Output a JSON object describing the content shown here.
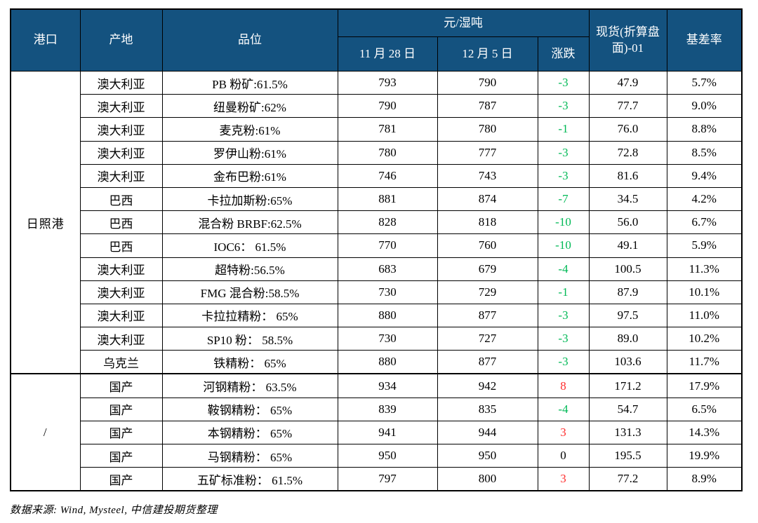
{
  "page": {
    "footer": "数据来源: Wind, Mysteel, 中信建投期货整理"
  },
  "colors": {
    "header_bg": "#14527F",
    "up_red": "#FF2D2D",
    "down_green": "#00B956",
    "border": "#000000"
  },
  "table": {
    "header": {
      "port": "港口",
      "origin": "产地",
      "grade": "品位",
      "unit_group": "元/湿吨",
      "date_prev": "11 月 28 日",
      "date_curr": "12 月 5 日",
      "change": "涨跌",
      "spot": "现货(折算盘面)-01",
      "basis_rate": "基差率"
    },
    "column_names": [
      "origin",
      "grade",
      "price_nov28",
      "price_dec5",
      "change",
      "spot_basis",
      "basis_rate"
    ],
    "groups": [
      {
        "port": "日照港",
        "rows": [
          [
            "澳大利亚",
            "PB 粉矿:61.5%",
            "793",
            "790",
            "-3",
            "47.9",
            "5.7%"
          ],
          [
            "澳大利亚",
            "纽曼粉矿:62%",
            "790",
            "787",
            "-3",
            "77.7",
            "9.0%"
          ],
          [
            "澳大利亚",
            "麦克粉:61%",
            "781",
            "780",
            "-1",
            "76.0",
            "8.8%"
          ],
          [
            "澳大利亚",
            "罗伊山粉:61%",
            "780",
            "777",
            "-3",
            "72.8",
            "8.5%"
          ],
          [
            "澳大利亚",
            "金布巴粉:61%",
            "746",
            "743",
            "-3",
            "81.6",
            "9.4%"
          ],
          [
            "巴西",
            "卡拉加斯粉:65%",
            "881",
            "874",
            "-7",
            "34.5",
            "4.2%"
          ],
          [
            "巴西",
            "混合粉 BRBF:62.5%",
            "828",
            "818",
            "-10",
            "56.0",
            "6.7%"
          ],
          [
            "巴西",
            "IOC6： 61.5%",
            "770",
            "760",
            "-10",
            "49.1",
            "5.9%"
          ],
          [
            "澳大利亚",
            "超特粉:56.5%",
            "683",
            "679",
            "-4",
            "100.5",
            "11.3%"
          ],
          [
            "澳大利亚",
            "FMG 混合粉:58.5%",
            "730",
            "729",
            "-1",
            "87.9",
            "10.1%"
          ],
          [
            "澳大利亚",
            "卡拉拉精粉： 65%",
            "880",
            "877",
            "-3",
            "97.5",
            "11.0%"
          ],
          [
            "澳大利亚",
            "SP10 粉： 58.5%",
            "730",
            "727",
            "-3",
            "89.0",
            "10.2%"
          ],
          [
            "乌克兰",
            "铁精粉： 65%",
            "880",
            "877",
            "-3",
            "103.6",
            "11.7%"
          ]
        ]
      },
      {
        "port": "/",
        "rows": [
          [
            "国产",
            "河钢精粉： 63.5%",
            "934",
            "942",
            "8",
            "171.2",
            "17.9%"
          ],
          [
            "国产",
            "鞍钢精粉： 65%",
            "839",
            "835",
            "-4",
            "54.7",
            "6.5%"
          ],
          [
            "国产",
            "本钢精粉： 65%",
            "941",
            "944",
            "3",
            "131.3",
            "14.3%"
          ],
          [
            "国产",
            "马钢精粉： 65%",
            "950",
            "950",
            "0",
            "195.5",
            "19.9%"
          ],
          [
            "国产",
            "五矿标准粉： 61.5%",
            "797",
            "800",
            "3",
            "77.2",
            "8.9%"
          ]
        ]
      }
    ]
  }
}
